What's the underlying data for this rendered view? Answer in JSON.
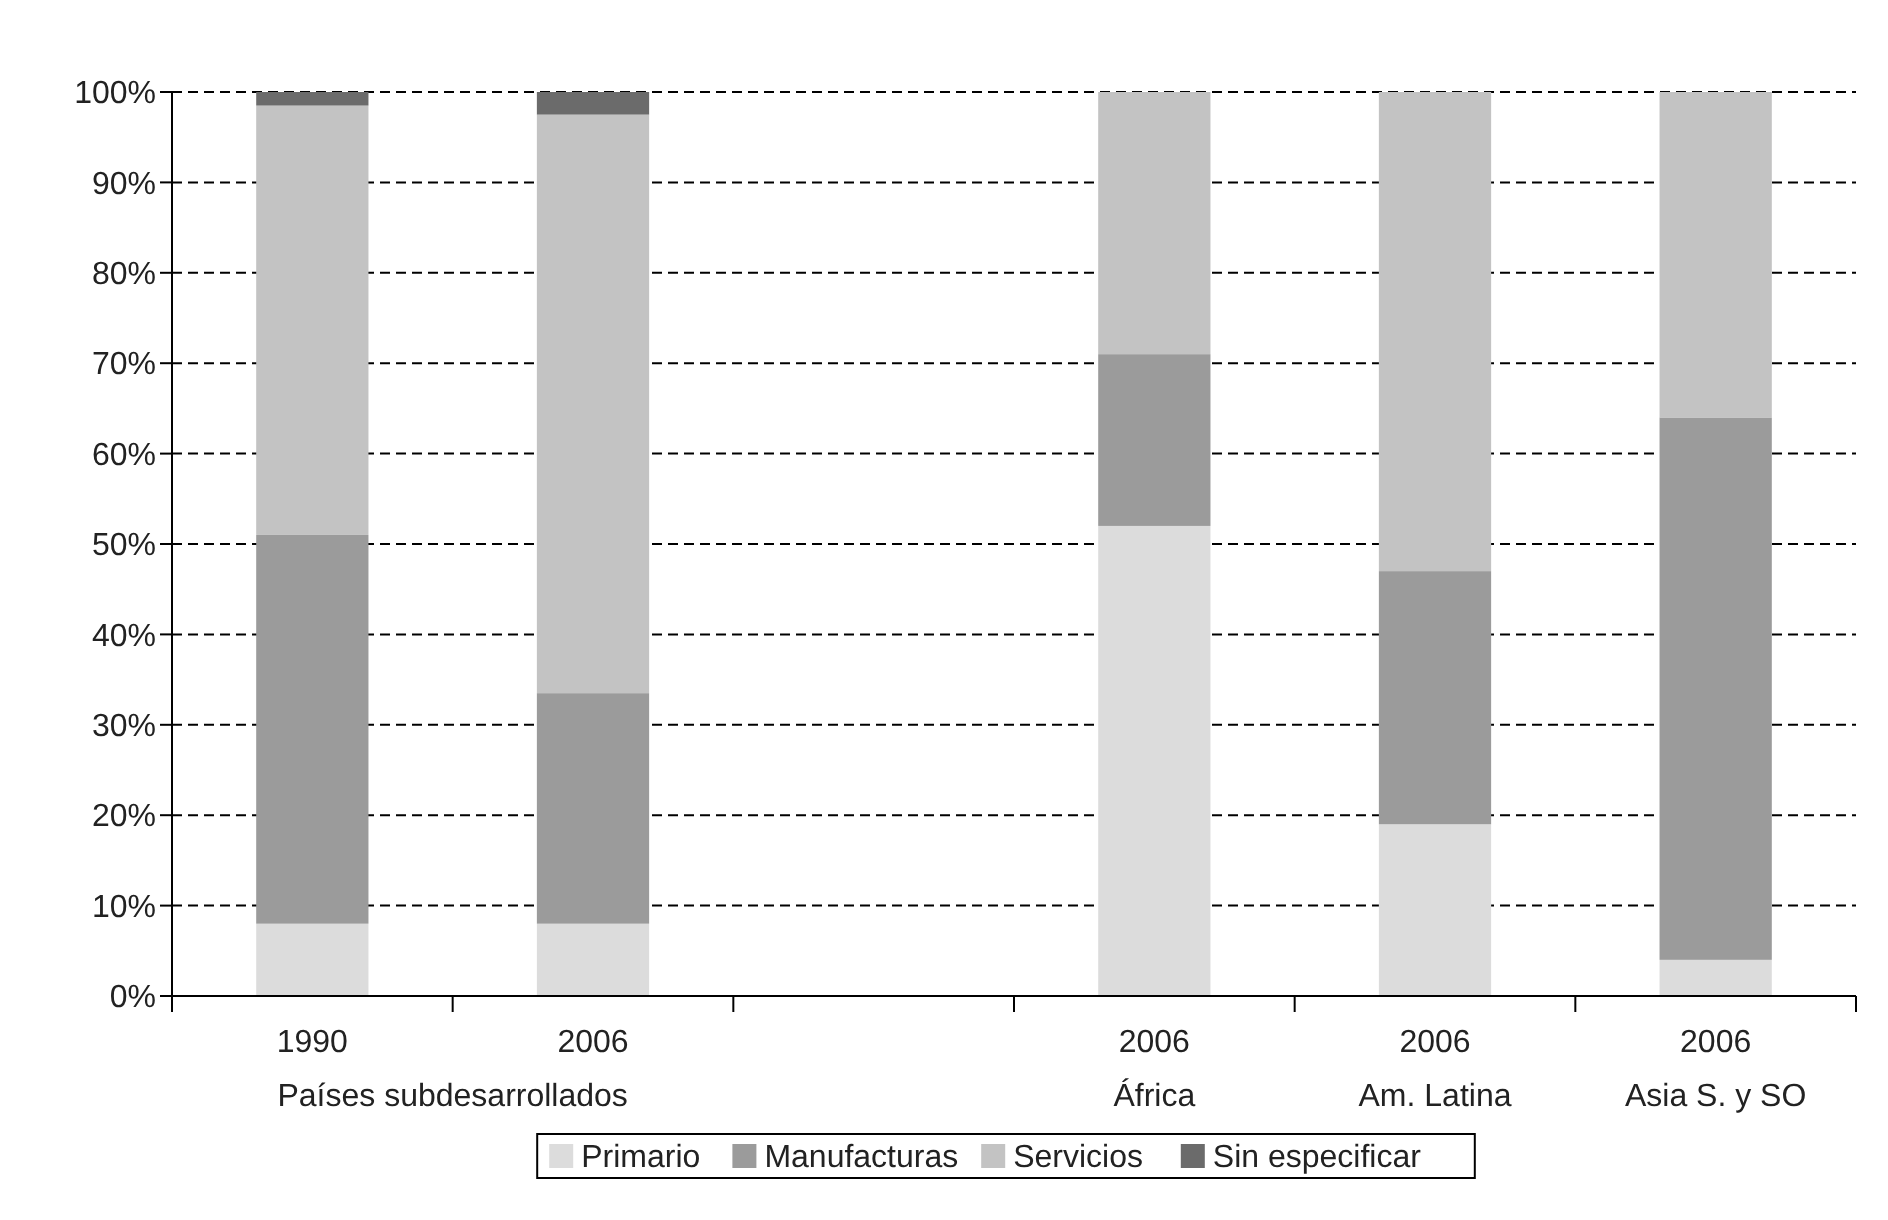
{
  "chart_data": {
    "type": "bar",
    "stacked": true,
    "categories": [
      "1990",
      "2006",
      null,
      "2006\nÁfrica",
      "2006\nAm. Latina",
      "2006\nAsia S. y SO"
    ],
    "series": [
      {
        "name": "Primario",
        "color": "#dcdcdc",
        "values": [
          8,
          8,
          null,
          52,
          19,
          4
        ]
      },
      {
        "name": "Manufacturas",
        "color": "#9b9b9b",
        "values": [
          43,
          25.5,
          null,
          19,
          28,
          60
        ]
      },
      {
        "name": "Servicios",
        "color": "#c3c3c3",
        "values": [
          47.5,
          64,
          null,
          29,
          53,
          36
        ]
      },
      {
        "name": "Sin especificar",
        "color": "#6b6b6b",
        "values": [
          1.5,
          2.5,
          null,
          0,
          0,
          0
        ]
      }
    ],
    "ylim": [
      0,
      100
    ],
    "yticks": [
      {
        "value": 0,
        "label": "0%"
      },
      {
        "value": 10,
        "label": "10%"
      },
      {
        "value": 20,
        "label": "20%"
      },
      {
        "value": 30,
        "label": "30%"
      },
      {
        "value": 40,
        "label": "40%"
      },
      {
        "value": 50,
        "label": "50%"
      },
      {
        "value": 60,
        "label": "60%"
      },
      {
        "value": 70,
        "label": "70%"
      },
      {
        "value": 80,
        "label": "80%"
      },
      {
        "value": 90,
        "label": "90%"
      },
      {
        "value": 100,
        "label": "100%"
      }
    ],
    "grid": "y",
    "legend": "bottom",
    "annotations": [
      "Países subdesarrollados"
    ]
  }
}
